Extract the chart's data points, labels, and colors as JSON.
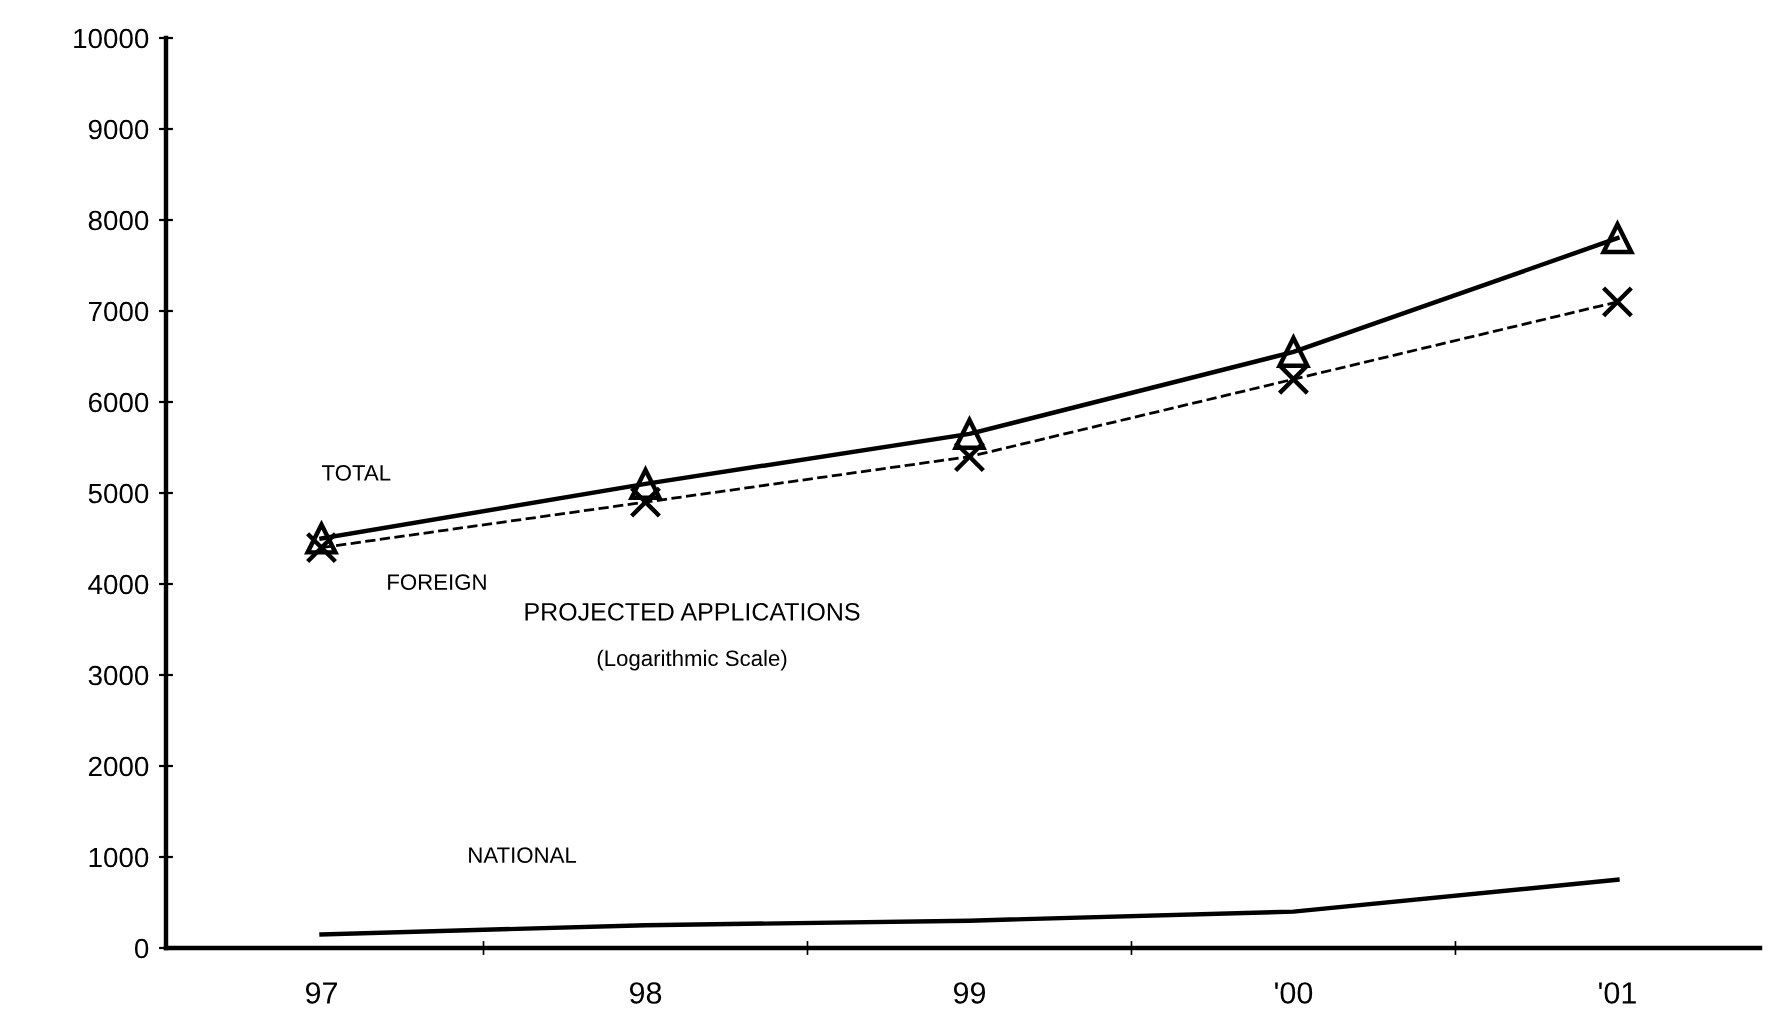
{
  "chart_data": {
    "type": "line",
    "title": "PROJECTED APPLICATIONS",
    "subtitle": "(Logarithmic Scale)",
    "categories": [
      "97",
      "98",
      "99",
      "'00",
      "'01"
    ],
    "series": [
      {
        "name": "TOTAL",
        "color": "#000000",
        "marker": "triangle",
        "line_style": "solid",
        "values": [
          4500,
          5100,
          5650,
          6550,
          7800
        ]
      },
      {
        "name": "FOREIGN",
        "color": "#000000",
        "marker": "cross",
        "line_style": "dashed",
        "values": [
          4400,
          4900,
          5400,
          6250,
          7100
        ]
      },
      {
        "name": "NATIONAL",
        "color": "#000000",
        "marker": "none",
        "line_style": "solid",
        "values": [
          150,
          250,
          300,
          400,
          750
        ]
      }
    ],
    "ylim": [
      0,
      10000
    ],
    "yticks": [
      0,
      1000,
      2000,
      3000,
      4000,
      5000,
      6000,
      7000,
      8000,
      9000,
      10000
    ],
    "grid": false,
    "legend": false
  }
}
